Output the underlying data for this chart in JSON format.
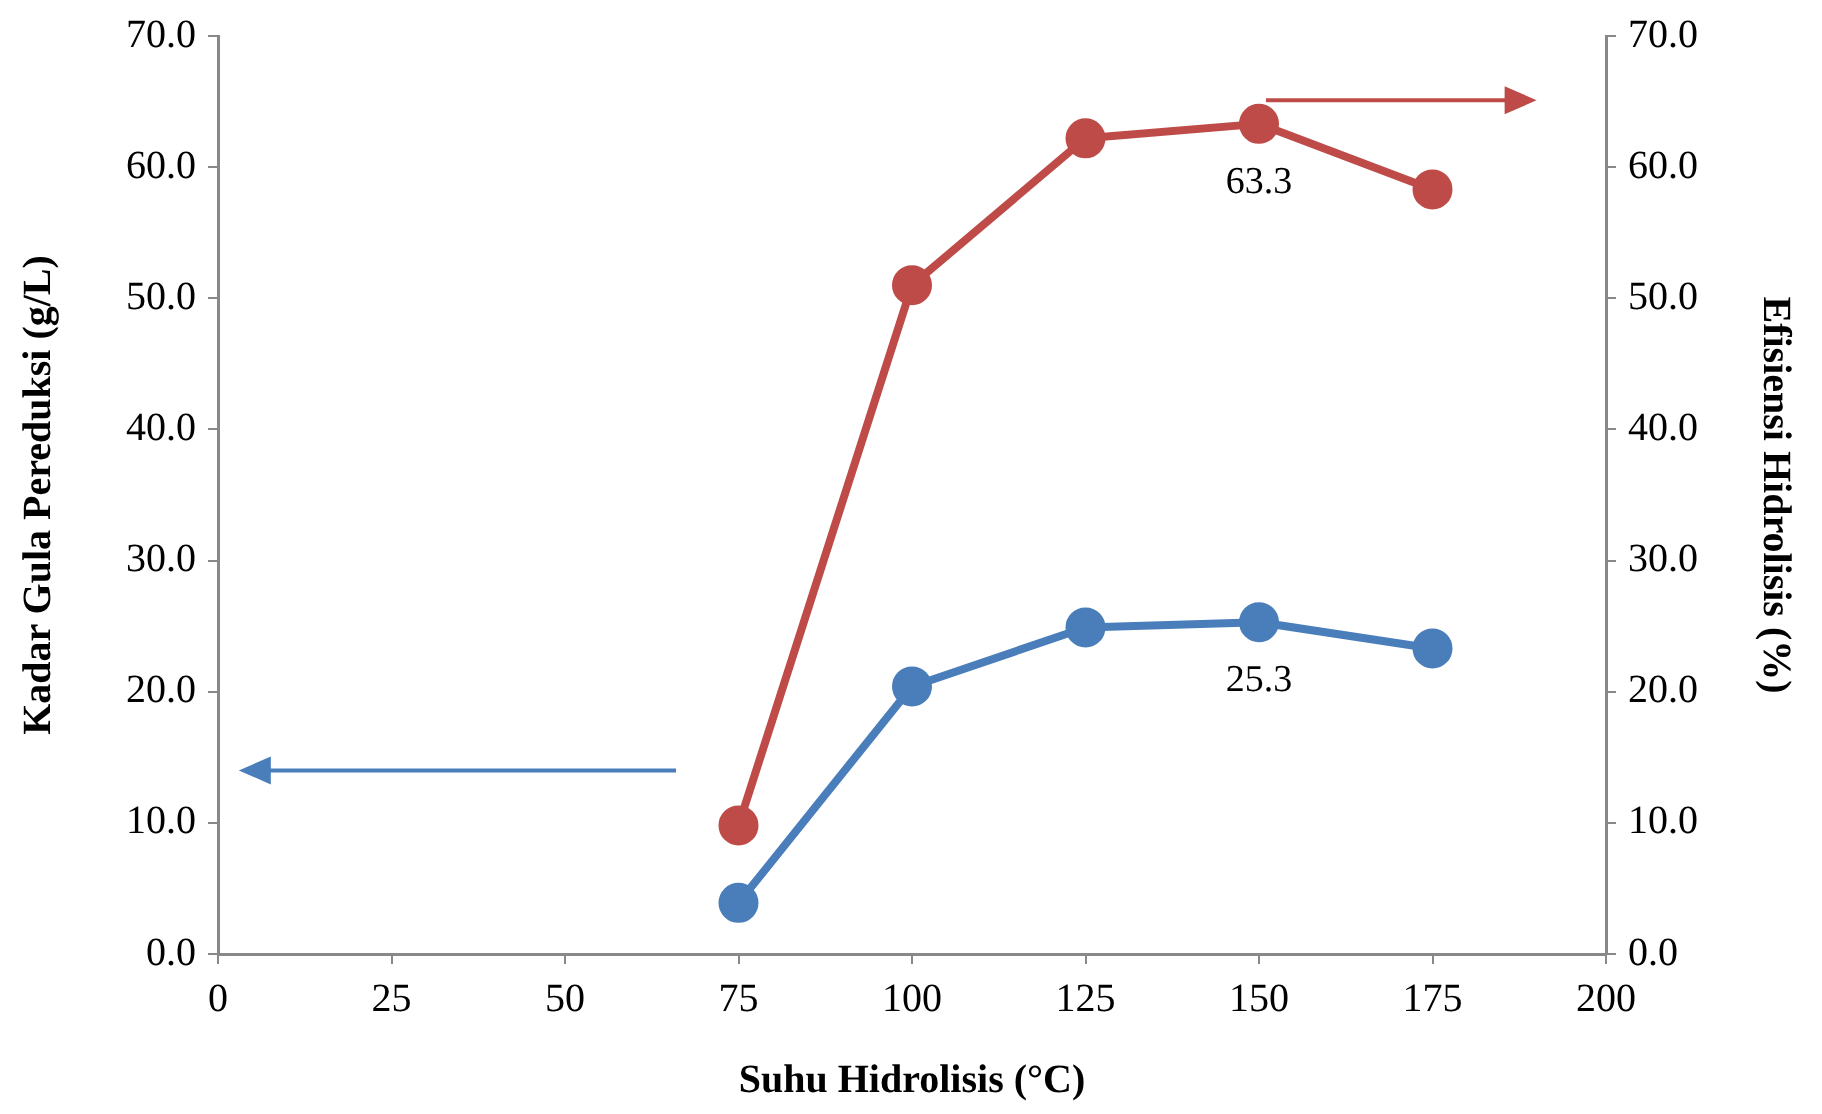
{
  "chart_data": {
    "type": "line",
    "xlabel": "Suhu Hidrolisis (°C)",
    "ylabel": "Kadar Gula Pereduksi (g/L)",
    "y2label": "Efisiensi Hidrolisis (%)",
    "x": [
      75,
      100,
      125,
      150,
      175
    ],
    "series": [
      {
        "color": "#4a7ebb",
        "values": [
          3.9,
          20.4,
          24.9,
          25.3,
          23.3
        ],
        "value_labels": [
          null,
          null,
          null,
          "25.3",
          null
        ]
      },
      {
        "color": "#be4b48",
        "axis": "y2",
        "values": [
          9.8,
          51.0,
          62.2,
          63.3,
          58.3
        ],
        "value_labels": [
          null,
          null,
          null,
          "63.3",
          null
        ]
      }
    ],
    "xlim": [
      0,
      200
    ],
    "xticks": [
      0,
      25,
      50,
      75,
      100,
      125,
      150,
      175,
      200
    ],
    "ylim": [
      0,
      70
    ],
    "yticks": [
      {
        "value": 0,
        "label": "0.0"
      },
      {
        "value": 10,
        "label": "10.0"
      },
      {
        "value": 20,
        "label": "20.0"
      },
      {
        "value": 30,
        "label": "30.0"
      },
      {
        "value": 40,
        "label": "40.0"
      },
      {
        "value": 50,
        "label": "50.0"
      },
      {
        "value": 60,
        "label": "60.0"
      },
      {
        "value": 70,
        "label": "70.0"
      }
    ],
    "y2lim": [
      0,
      70
    ],
    "y2ticks": [
      {
        "value": 0,
        "label": "0.0"
      },
      {
        "value": 10,
        "label": "10.0"
      },
      {
        "value": 20,
        "label": "20.0"
      },
      {
        "value": 30,
        "label": "30.0"
      },
      {
        "value": 40,
        "label": "40.0"
      },
      {
        "value": 50,
        "label": "50.0"
      },
      {
        "value": 60,
        "label": "60.0"
      },
      {
        "value": 70,
        "label": "70.0"
      }
    ],
    "grid": false,
    "legend": false,
    "marker": "circle",
    "line_style": "solid"
  }
}
